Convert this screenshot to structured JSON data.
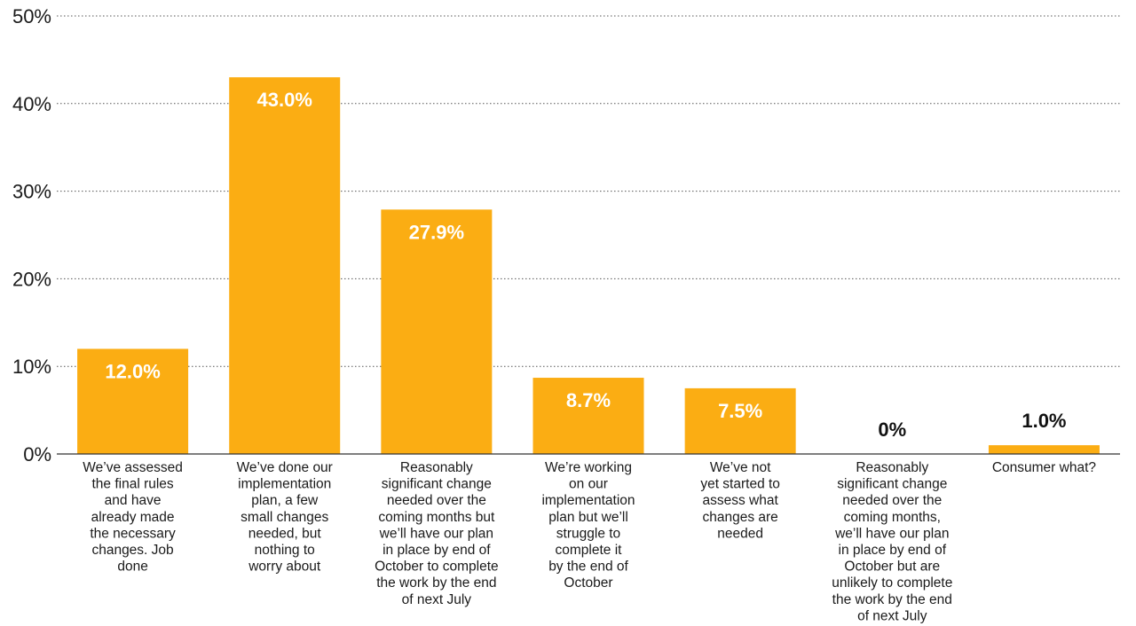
{
  "chart_data": {
    "type": "bar",
    "categories": [
      [
        "We’ve assessed",
        "the final rules",
        "and have",
        "already made",
        "the necessary",
        "changes. Job",
        "done"
      ],
      [
        "We’ve done our",
        "implementation",
        "plan, a few",
        "small changes",
        "needed, but",
        "nothing to",
        "worry about"
      ],
      [
        "Reasonably",
        "significant change",
        "needed over the",
        "coming months but",
        "we’ll have our plan",
        "in place by end of",
        "October to complete",
        "the work by the end",
        "of next July"
      ],
      [
        "We’re working",
        "on our",
        "implementation",
        "plan but we’ll",
        "struggle to",
        "complete it",
        "by the end of",
        "October"
      ],
      [
        "We’ve not",
        "yet started to",
        "assess what",
        "changes are",
        "needed"
      ],
      [
        "Reasonably",
        "significant change",
        "needed over the",
        "coming months,",
        "we’ll have our plan",
        "in place by end of",
        "October but are",
        "unlikely to complete",
        "the work by the end",
        "of next July"
      ],
      [
        "Consumer what?"
      ]
    ],
    "values": [
      12.0,
      43.0,
      27.9,
      8.7,
      7.5,
      0,
      1.0
    ],
    "data_labels": [
      "12.0%",
      "43.0%",
      "27.9%",
      "8.7%",
      "7.5%",
      "0%",
      "1.0%"
    ],
    "yticks": [
      "0%",
      "10%",
      "20%",
      "30%",
      "40%",
      "50%"
    ],
    "ylim": [
      0,
      50
    ],
    "grid": true,
    "legend": "none",
    "bar_color": "#FBAD13",
    "inside_label_color": "#ffffff",
    "outside_label_color": "#111111"
  }
}
